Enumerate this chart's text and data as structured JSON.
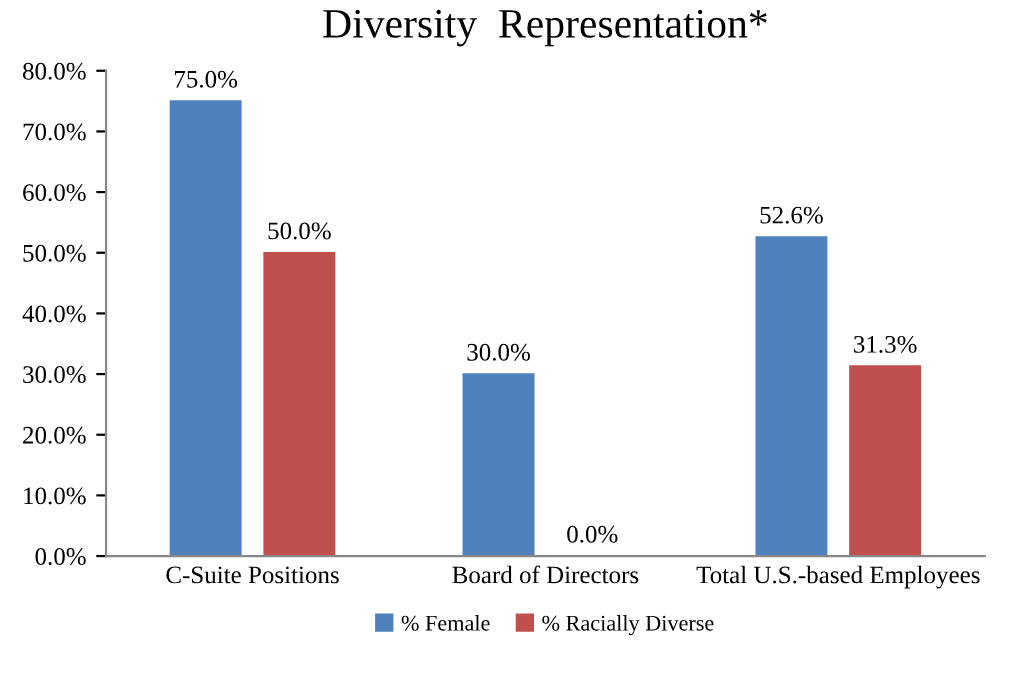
{
  "chart_data": {
    "type": "bar",
    "title": "Diversity  Representation*",
    "categories": [
      "C-Suite Positions",
      "Board of Directors",
      "Total U.S.-based Employees"
    ],
    "series": [
      {
        "name": "% Female",
        "color": "#4f81bd",
        "values": [
          75.0,
          30.0,
          52.6
        ],
        "value_labels": [
          "75.0%",
          "30.0%",
          "52.6%"
        ]
      },
      {
        "name": "% Racially Diverse",
        "color": "#c0504d",
        "values": [
          50.0,
          0.0,
          31.3
        ],
        "value_labels": [
          "50.0%",
          "0.0%",
          "31.3%"
        ]
      }
    ],
    "ylim": [
      0,
      80
    ],
    "yticks": [
      {
        "value": 0,
        "label": "0.0%"
      },
      {
        "value": 10,
        "label": "10.0%"
      },
      {
        "value": 20,
        "label": "20.0%"
      },
      {
        "value": 30,
        "label": "30.0%"
      },
      {
        "value": 40,
        "label": "40.0%"
      },
      {
        "value": 50,
        "label": "50.0%"
      },
      {
        "value": 60,
        "label": "60.0%"
      },
      {
        "value": 70,
        "label": "70.0%"
      },
      {
        "value": 80,
        "label": "80.0%"
      }
    ],
    "grid": false,
    "legend": "bottom"
  }
}
